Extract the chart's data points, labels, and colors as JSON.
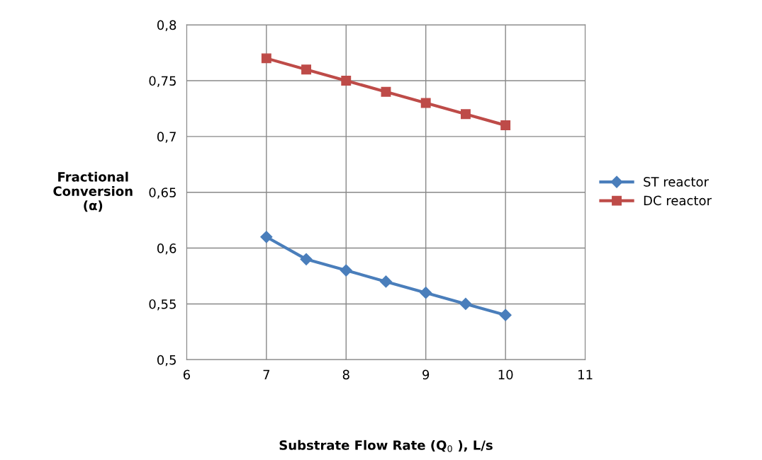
{
  "chart_data": {
    "type": "line",
    "xlabel": "Substrate Flow Rate (Q$_{0}$ ), L/s",
    "ylabel": "Fractional\nConversion\n(α)",
    "x": [
      7,
      7.5,
      8,
      8.5,
      9,
      9.5,
      10
    ],
    "series": [
      {
        "name": "ST reactor",
        "color": "#4a7ebb",
        "marker": "diamond",
        "values": [
          0.61,
          0.59,
          0.58,
          0.57,
          0.56,
          0.55,
          0.54
        ]
      },
      {
        "name": "DC reactor",
        "color": "#be4b48",
        "marker": "square",
        "values": [
          0.77,
          0.76,
          0.75,
          0.74,
          0.73,
          0.72,
          0.71
        ]
      }
    ],
    "xlim": [
      6,
      11
    ],
    "xticks": [
      6,
      7,
      8,
      9,
      10,
      11
    ],
    "ylim": [
      0.5,
      0.8
    ],
    "yticks": [
      {
        "value": 0.5,
        "label": "0,5"
      },
      {
        "value": 0.55,
        "label": "0,55"
      },
      {
        "value": 0.6,
        "label": "0,6"
      },
      {
        "value": 0.65,
        "label": "0,65"
      },
      {
        "value": 0.7,
        "label": "0,7"
      },
      {
        "value": 0.75,
        "label": "0,75"
      },
      {
        "value": 0.8,
        "label": "0,8"
      }
    ],
    "grid": true,
    "legend": "right",
    "line_style": "solid"
  }
}
